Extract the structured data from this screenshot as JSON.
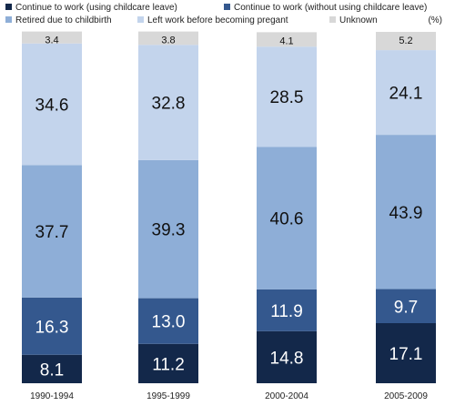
{
  "chart_data": {
    "type": "bar",
    "stacked": true,
    "unit": "(%)",
    "categories": [
      "1990-1994",
      "1995-1999",
      "2000-2004",
      "2005-2009"
    ],
    "series": [
      {
        "name": "Continue to work (using childcare leave)",
        "values": [
          8.1,
          11.2,
          14.8,
          17.1
        ],
        "color": "#13284a",
        "label_color": "#ffffff"
      },
      {
        "name": "Continue to work (without using childcare leave)",
        "values": [
          16.3,
          13.0,
          11.9,
          9.7
        ],
        "color": "#34588e",
        "label_color": "#ffffff"
      },
      {
        "name": "Retired due to childbirth",
        "values": [
          37.7,
          39.3,
          40.6,
          43.9
        ],
        "color": "#8eaed7",
        "label_color": "#111111"
      },
      {
        "name": "Left work before becoming pregant",
        "values": [
          34.6,
          32.8,
          28.5,
          24.1
        ],
        "color": "#c3d4ec",
        "label_color": "#111111"
      },
      {
        "name": "Unknown",
        "values": [
          3.4,
          3.8,
          4.1,
          5.2
        ],
        "color": "#d8d8d8",
        "label_color": "#111111"
      }
    ],
    "ylim": [
      0,
      100
    ],
    "grid": false,
    "legend_position": "top"
  }
}
